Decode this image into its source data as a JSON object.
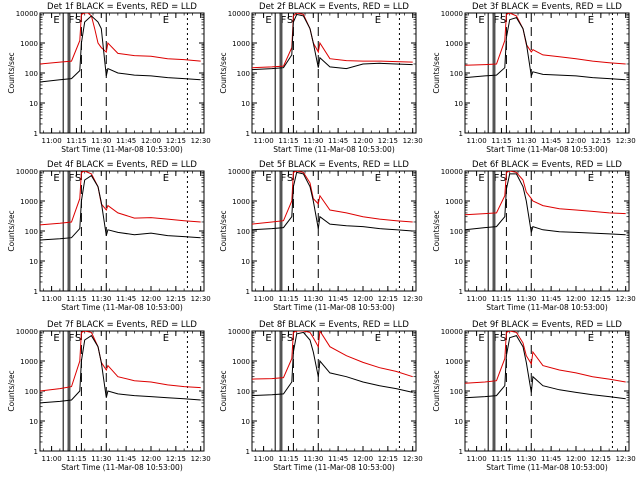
{
  "colors": {
    "events": "#000000",
    "lld": "#dd0000",
    "background": "#ffffff"
  },
  "shared": {
    "ylabel": "Counts/sec",
    "xlabel": "Start Time (11-Mar-08 10:53:00)",
    "xlim": [
      "10:53",
      "12:32"
    ],
    "ylim": [
      1,
      10000
    ],
    "yscale": "log",
    "xticks": [
      "11:00",
      "11:15",
      "11:30",
      "11:45",
      "12:00",
      "12:15",
      "12:30"
    ],
    "yticks": [
      "1",
      "10",
      "100",
      "1000",
      "10000"
    ]
  },
  "chart_data": [
    {
      "type": "line",
      "title": "Det 1f BLACK = Events, RED = LLD",
      "marker_labels": [
        "E",
        "F",
        "S",
        "E"
      ],
      "series": [
        {
          "x": [
            "10:53",
            "11:05",
            "11:12",
            "11:17",
            "11:18",
            "11:20",
            "11:22",
            "11:24",
            "11:26",
            "11:28",
            "11:30",
            "11:33",
            "11:34",
            "11:40",
            "11:50",
            "12:00",
            "12:10",
            "12:20",
            "12:30"
          ],
          "values": [
            200,
            230,
            250,
            1200,
            9000,
            10000,
            10000,
            8000,
            3000,
            1000,
            700,
            500,
            1000,
            450,
            380,
            360,
            300,
            280,
            250
          ]
        },
        {
          "x": [
            "10:53",
            "11:05",
            "11:12",
            "11:17",
            "11:18",
            "11:20",
            "11:24",
            "11:28",
            "11:30",
            "11:33",
            "11:34",
            "11:40",
            "11:50",
            "12:00",
            "12:10",
            "12:20",
            "12:30"
          ],
          "values": [
            50,
            60,
            65,
            120,
            1000,
            5000,
            8000,
            5000,
            3000,
            80,
            140,
            100,
            85,
            80,
            70,
            65,
            60
          ]
        }
      ]
    },
    {
      "type": "line",
      "title": "Det 2f BLACK = Events, RED = LLD",
      "marker_labels": [
        "E",
        "F",
        "S",
        "E"
      ],
      "series": [
        {
          "x": [
            "10:53",
            "11:05",
            "11:12",
            "11:17",
            "11:18",
            "11:20",
            "11:24",
            "11:28",
            "11:30",
            "11:33",
            "11:34",
            "11:40",
            "11:50",
            "12:00",
            "12:10",
            "12:20",
            "12:30"
          ],
          "values": [
            150,
            160,
            170,
            700,
            8000,
            10000,
            9000,
            3000,
            1000,
            500,
            1000,
            300,
            260,
            250,
            250,
            240,
            230
          ]
        },
        {
          "x": [
            "10:53",
            "11:05",
            "11:12",
            "11:17",
            "11:18",
            "11:20",
            "11:24",
            "11:28",
            "11:30",
            "11:33",
            "11:34",
            "11:40",
            "11:50",
            "12:00",
            "12:10",
            "12:20",
            "12:30"
          ],
          "values": [
            130,
            140,
            150,
            400,
            5000,
            9000,
            8000,
            3000,
            1000,
            150,
            320,
            160,
            140,
            200,
            210,
            200,
            190
          ]
        }
      ]
    },
    {
      "type": "line",
      "title": "Det 3f BLACK = Events, RED = LLD",
      "marker_labels": [
        "E",
        "F",
        "S",
        "E"
      ],
      "series": [
        {
          "x": [
            "10:53",
            "11:05",
            "11:12",
            "11:17",
            "11:18",
            "11:20",
            "11:24",
            "11:28",
            "11:30",
            "11:33",
            "11:34",
            "11:40",
            "11:50",
            "12:00",
            "12:10",
            "12:20",
            "12:30"
          ],
          "values": [
            180,
            190,
            200,
            1200,
            9000,
            10000,
            8000,
            3000,
            900,
            500,
            600,
            400,
            350,
            300,
            250,
            220,
            200
          ]
        },
        {
          "x": [
            "10:53",
            "11:05",
            "11:12",
            "11:17",
            "11:18",
            "11:20",
            "11:24",
            "11:28",
            "11:30",
            "11:33",
            "11:34",
            "11:40",
            "11:50",
            "12:00",
            "12:10",
            "12:20",
            "12:30"
          ],
          "values": [
            70,
            80,
            85,
            150,
            1500,
            6000,
            7000,
            3000,
            1000,
            80,
            110,
            90,
            85,
            80,
            70,
            65,
            60
          ]
        }
      ]
    },
    {
      "type": "line",
      "title": "Det 4f BLACK = Events, RED = LLD",
      "marker_labels": [
        "E",
        "F",
        "S",
        "E"
      ],
      "series": [
        {
          "x": [
            "10:53",
            "11:05",
            "11:12",
            "11:17",
            "11:18",
            "11:20",
            "11:24",
            "11:28",
            "11:30",
            "11:33",
            "11:34",
            "11:40",
            "11:50",
            "12:00",
            "12:10",
            "12:20",
            "12:30"
          ],
          "values": [
            160,
            180,
            200,
            1200,
            9000,
            10000,
            8000,
            3000,
            800,
            500,
            700,
            400,
            270,
            280,
            250,
            220,
            200
          ]
        },
        {
          "x": [
            "10:53",
            "11:05",
            "11:12",
            "11:17",
            "11:18",
            "11:20",
            "11:24",
            "11:28",
            "11:30",
            "11:33",
            "11:34",
            "11:40",
            "11:50",
            "12:00",
            "12:10",
            "12:20",
            "12:30"
          ],
          "values": [
            50,
            55,
            60,
            120,
            1000,
            5000,
            7000,
            3000,
            900,
            70,
            110,
            90,
            75,
            85,
            70,
            65,
            60
          ]
        }
      ]
    },
    {
      "type": "line",
      "title": "Det 5f BLACK = Events, RED = LLD",
      "marker_labels": [
        "E",
        "F",
        "S",
        "E"
      ],
      "series": [
        {
          "x": [
            "10:53",
            "11:05",
            "11:12",
            "11:17",
            "11:18",
            "11:20",
            "11:24",
            "11:28",
            "11:30",
            "11:33",
            "11:34",
            "11:40",
            "11:50",
            "12:00",
            "12:10",
            "12:20",
            "12:30"
          ],
          "values": [
            170,
            200,
            220,
            1000,
            9000,
            10000,
            9000,
            4000,
            1200,
            800,
            1500,
            500,
            400,
            300,
            250,
            220,
            200
          ]
        },
        {
          "x": [
            "10:53",
            "11:05",
            "11:12",
            "11:17",
            "11:18",
            "11:20",
            "11:24",
            "11:28",
            "11:30",
            "11:33",
            "11:34",
            "11:40",
            "11:50",
            "12:00",
            "12:10",
            "12:20",
            "12:30"
          ],
          "values": [
            110,
            120,
            130,
            300,
            3000,
            9000,
            8000,
            3000,
            1000,
            120,
            300,
            170,
            150,
            140,
            120,
            110,
            100
          ]
        }
      ]
    },
    {
      "type": "line",
      "title": "Det 6f BLACK = Events, RED = LLD",
      "marker_labels": [
        "E",
        "F",
        "S",
        "E"
      ],
      "series": [
        {
          "x": [
            "10:53",
            "11:05",
            "11:12",
            "11:17",
            "11:18",
            "11:20",
            "11:24",
            "11:28",
            "11:30",
            "11:33",
            "11:34",
            "11:40",
            "11:50",
            "12:00",
            "12:10",
            "12:20",
            "12:30"
          ],
          "values": [
            350,
            380,
            400,
            1500,
            9000,
            10000,
            9000,
            5000,
            2000,
            1200,
            1000,
            700,
            550,
            500,
            450,
            400,
            380
          ]
        },
        {
          "x": [
            "10:53",
            "11:05",
            "11:12",
            "11:17",
            "11:18",
            "11:20",
            "11:24",
            "11:28",
            "11:30",
            "11:33",
            "11:34",
            "11:40",
            "11:50",
            "12:00",
            "12:10",
            "12:20",
            "12:30"
          ],
          "values": [
            110,
            130,
            140,
            300,
            2500,
            8000,
            8000,
            3000,
            1000,
            90,
            140,
            110,
            95,
            90,
            85,
            80,
            75
          ]
        }
      ]
    },
    {
      "type": "line",
      "title": "Det 7f BLACK = Events, RED = LLD",
      "marker_labels": [
        "E",
        "F",
        "S",
        "E"
      ],
      "series": [
        {
          "x": [
            "10:53",
            "11:05",
            "11:12",
            "11:17",
            "11:18",
            "11:20",
            "11:24",
            "11:28",
            "11:30",
            "11:33",
            "11:34",
            "11:40",
            "11:50",
            "12:00",
            "12:10",
            "12:20",
            "12:30"
          ],
          "values": [
            100,
            120,
            140,
            1000,
            9000,
            10000,
            9000,
            3000,
            900,
            500,
            700,
            300,
            220,
            200,
            160,
            140,
            130
          ]
        },
        {
          "x": [
            "10:53",
            "11:05",
            "11:12",
            "11:17",
            "11:18",
            "11:20",
            "11:24",
            "11:28",
            "11:30",
            "11:33",
            "11:34",
            "11:40",
            "11:50",
            "12:00",
            "12:10",
            "12:20",
            "12:30"
          ],
          "values": [
            40,
            45,
            50,
            100,
            1000,
            5000,
            7000,
            3000,
            900,
            60,
            100,
            80,
            70,
            65,
            60,
            55,
            50
          ]
        }
      ]
    },
    {
      "type": "line",
      "title": "Det 8f BLACK = Events, RED = LLD",
      "marker_labels": [
        "E",
        "F",
        "S",
        "E"
      ],
      "series": [
        {
          "x": [
            "10:53",
            "11:05",
            "11:12",
            "11:17",
            "11:18",
            "11:20",
            "11:24",
            "11:28",
            "11:30",
            "11:33",
            "11:34",
            "11:40",
            "11:50",
            "12:00",
            "12:10",
            "12:20",
            "12:30"
          ],
          "values": [
            250,
            260,
            280,
            1200,
            9000,
            10000,
            10000,
            9000,
            6000,
            3000,
            10000,
            3000,
            1500,
            900,
            600,
            450,
            300
          ]
        },
        {
          "x": [
            "10:53",
            "11:05",
            "11:12",
            "11:17",
            "11:18",
            "11:20",
            "11:24",
            "11:28",
            "11:30",
            "11:33",
            "11:34",
            "11:40",
            "11:50",
            "12:00",
            "12:10",
            "12:20",
            "12:30"
          ],
          "values": [
            70,
            75,
            80,
            200,
            2000,
            8000,
            9000,
            5000,
            2000,
            300,
            1000,
            400,
            300,
            200,
            150,
            120,
            90
          ]
        }
      ]
    },
    {
      "type": "line",
      "title": "Det 9f BLACK = Events, RED = LLD",
      "marker_labels": [
        "E",
        "F",
        "S",
        "E"
      ],
      "series": [
        {
          "x": [
            "10:53",
            "11:05",
            "11:12",
            "11:17",
            "11:18",
            "11:20",
            "11:24",
            "11:28",
            "11:30",
            "11:33",
            "11:34",
            "11:40",
            "11:50",
            "12:00",
            "12:10",
            "12:20",
            "12:30"
          ],
          "values": [
            180,
            200,
            220,
            1200,
            9000,
            10000,
            9000,
            4000,
            1500,
            800,
            2000,
            700,
            500,
            400,
            300,
            250,
            200
          ]
        },
        {
          "x": [
            "10:53",
            "11:05",
            "11:12",
            "11:17",
            "11:18",
            "11:20",
            "11:24",
            "11:28",
            "11:30",
            "11:33",
            "11:34",
            "11:40",
            "11:50",
            "12:00",
            "12:10",
            "12:20",
            "12:30"
          ],
          "values": [
            60,
            65,
            70,
            150,
            1500,
            6000,
            7000,
            3000,
            900,
            90,
            300,
            150,
            110,
            90,
            75,
            65,
            55
          ]
        }
      ]
    }
  ]
}
